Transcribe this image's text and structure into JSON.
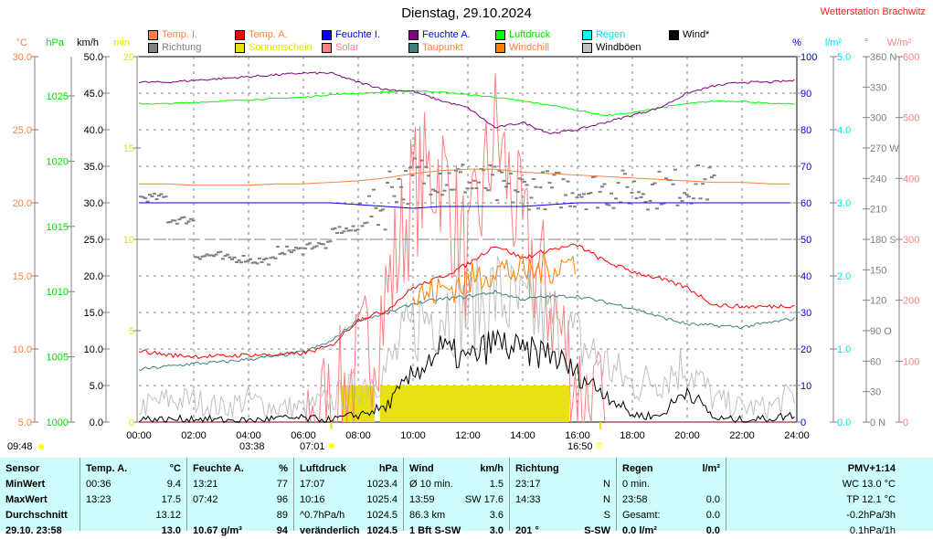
{
  "title": "Dienstag, 29.10.2024",
  "station": "Wetterstation Brachwitz",
  "legend": [
    {
      "label": "Temp. I.",
      "color": "#ff8040",
      "text": "#ff8040"
    },
    {
      "label": "Temp. A.",
      "color": "#ff0000",
      "text": "#ff8040"
    },
    {
      "label": "Feuchte I.",
      "color": "#0000ff",
      "text": "#0000ff"
    },
    {
      "label": "Feuchte A.",
      "color": "#800080",
      "text": "#0000ff"
    },
    {
      "label": "Luftdruck",
      "color": "#00ff00",
      "text": "#00e000"
    },
    {
      "label": "Regen",
      "color": "#00ffff",
      "text": "#00e0ff"
    },
    {
      "label": "Wind*",
      "color": "#000000",
      "text": "#000000"
    },
    {
      "label": "Richtung",
      "color": "#808080",
      "text": "#808080"
    },
    {
      "label": "Sonnenschein",
      "color": "#e8e010",
      "text": "#e8e010"
    },
    {
      "label": "Solar",
      "color": "#ff8080",
      "text": "#ff8080"
    },
    {
      "label": "Taupunkt",
      "color": "#408080",
      "text": "#ff8040"
    },
    {
      "label": "Windchill",
      "color": "#ff8000",
      "text": "#ff8040"
    },
    {
      "label": "Windböen",
      "color": "#c0c0c0",
      "text": "#000000"
    }
  ],
  "chart_data": {
    "type": "line",
    "title": "Dienstag, 29.10.2024",
    "x_hours": [
      0,
      1,
      2,
      3,
      4,
      5,
      6,
      7,
      8,
      9,
      10,
      11,
      12,
      13,
      14,
      15,
      16,
      17,
      18,
      19,
      20,
      21,
      22,
      23,
      24
    ],
    "x_ticks": [
      "00:00",
      "02:00",
      "04:00",
      "06:00",
      "08:00",
      "10:00",
      "12:00",
      "14:00",
      "16:00",
      "18:00",
      "20:00",
      "22:00",
      "24:00"
    ],
    "axes": {
      "temp": {
        "unit": "°C",
        "range": [
          5,
          30
        ],
        "ticks": [
          "30.0",
          "25.0",
          "20.0",
          "15.0",
          "10.0",
          "5.0"
        ],
        "color": "#ff8040"
      },
      "pressure": {
        "unit": "hPa",
        "range": [
          1000,
          1028
        ],
        "ticks": [
          "1025",
          "1020",
          "1015",
          "1010",
          "1005",
          "1000"
        ],
        "color": "#00e000"
      },
      "wind": {
        "unit": "km/h",
        "range": [
          0,
          50
        ],
        "ticks": [
          "50.0",
          "45.0",
          "40.0",
          "35.0",
          "30.0",
          "25.0",
          "20.0",
          "15.0",
          "10.0",
          "5.0",
          "0.0"
        ],
        "color": "#000000"
      },
      "sun": {
        "unit": "min",
        "range": [
          0,
          20
        ],
        "ticks": [
          "20",
          "15",
          "10",
          "5",
          "0"
        ],
        "color": "#e8e010"
      },
      "humidity": {
        "unit": "%",
        "range": [
          0,
          100
        ],
        "ticks": [
          "100",
          "90",
          "80",
          "70",
          "60",
          "50",
          "40",
          "30",
          "20",
          "10",
          "0"
        ],
        "color": "#0000ff"
      },
      "rain": {
        "unit": "l/m²",
        "range": [
          0,
          5
        ],
        "ticks": [
          "5.0",
          "4.0",
          "3.0",
          "2.0",
          "1.0",
          "0.0"
        ],
        "color": "#00e0ff"
      },
      "direction": {
        "unit": "°",
        "range": [
          0,
          360
        ],
        "ticks": [
          "360 N",
          "330",
          "300",
          "270 W",
          "240",
          "210",
          "180 S",
          "150",
          "120",
          "90  O",
          "60",
          "30",
          "0    N"
        ],
        "color": "#808080"
      },
      "solar": {
        "unit": "W/m²",
        "range": [
          0,
          600
        ],
        "ticks": [
          "600",
          "500",
          "400",
          "300",
          "200",
          "100",
          "0"
        ],
        "color": "#ff8080"
      }
    },
    "series": [
      {
        "name": "Temp. I.",
        "axis": "temp",
        "color": "#ff8040",
        "values": [
          21.3,
          21.3,
          21.2,
          21.2,
          21.2,
          21.3,
          21.3,
          21.4,
          21.5,
          21.7,
          22,
          22.2,
          22.3,
          22.3,
          22.1,
          22,
          21.9,
          21.8,
          21.7,
          21.6,
          21.5,
          21.4,
          21.4,
          21.3,
          21.3
        ]
      },
      {
        "name": "Temp. A.",
        "axis": "temp",
        "color": "#ff0000",
        "values": [
          9.9,
          9.6,
          9.5,
          9.5,
          9.6,
          9.6,
          9.7,
          10.2,
          12,
          12.6,
          14.2,
          14.9,
          15.8,
          17.1,
          16.2,
          16.8,
          17.1,
          16,
          15.3,
          14.8,
          14.2,
          13,
          12.9,
          12.9,
          13.0
        ]
      },
      {
        "name": "Taupunkt",
        "axis": "temp",
        "color": "#408080",
        "values": [
          8.6,
          8.8,
          9,
          9.1,
          9.3,
          9.5,
          9.8,
          10.5,
          12,
          12.4,
          13.1,
          13.4,
          13.6,
          13.9,
          13.4,
          13.6,
          13.6,
          13.2,
          12.8,
          12.2,
          11.7,
          11.6,
          11.5,
          11.8,
          12.1
        ]
      },
      {
        "name": "Feuchte A.",
        "axis": "humidity",
        "color": "#800080",
        "values": [
          93,
          93,
          93.5,
          94,
          94.5,
          95,
          95.5,
          95.5,
          93,
          91,
          90.5,
          88,
          86,
          80.5,
          82,
          79,
          80,
          82,
          84,
          86,
          90,
          92,
          93,
          93,
          93.5
        ]
      },
      {
        "name": "Feuchte I.",
        "axis": "humidity",
        "color": "#0000ff",
        "values": [
          60,
          60,
          60,
          60,
          60,
          60,
          60,
          60,
          59.5,
          59,
          58.5,
          59,
          59,
          59,
          59,
          59.5,
          60,
          60,
          60,
          60,
          60,
          60,
          60,
          60,
          60
        ]
      },
      {
        "name": "Luftdruck",
        "axis": "pressure",
        "color": "#00ff00",
        "values": [
          1024.4,
          1024.4,
          1024.5,
          1024.6,
          1024.7,
          1024.8,
          1024.9,
          1025.1,
          1025.2,
          1025.3,
          1025.4,
          1025.3,
          1025.1,
          1024.9,
          1024.6,
          1024.3,
          1023.9,
          1023.5,
          1023.7,
          1024.1,
          1024.4,
          1024.6,
          1024.6,
          1024.4,
          1024.4
        ]
      },
      {
        "name": "Wind*",
        "axis": "wind",
        "color": "#000000",
        "values": [
          0.5,
          0.3,
          0.5,
          0.3,
          0.2,
          0.5,
          0.5,
          0.3,
          1,
          2,
          6.5,
          10,
          8.5,
          11,
          9.5,
          9.5,
          6.5,
          4,
          1,
          0.8,
          4.5,
          0.5,
          0.3,
          0.5,
          1
        ]
      },
      {
        "name": "Windböen",
        "axis": "wind",
        "color": "#c0c0c0",
        "values": [
          2,
          3,
          3,
          2,
          3,
          2,
          2,
          3,
          5,
          7,
          13,
          16,
          15,
          17.6,
          15,
          14,
          11,
          8,
          5,
          6,
          8,
          3,
          2,
          2,
          4
        ]
      },
      {
        "name": "Windchill",
        "axis": "temp",
        "color": "#ff8000",
        "values": [
          null,
          null,
          null,
          null,
          null,
          null,
          null,
          null,
          null,
          null,
          13.5,
          14,
          14.6,
          15.5,
          15.2,
          15.6,
          16,
          null,
          null,
          null,
          null,
          null,
          null,
          null,
          null
        ]
      },
      {
        "name": "Solar",
        "axis": "solar",
        "color": "#ff8080",
        "values": [
          0,
          0,
          0,
          0,
          0,
          0,
          0,
          20,
          80,
          200,
          380,
          420,
          250,
          480,
          300,
          200,
          60,
          0,
          0,
          0,
          0,
          0,
          0,
          0,
          0
        ]
      },
      {
        "name": "Richtung",
        "axis": "direction",
        "type": "scatter",
        "color": "#808080",
        "values": [
          222,
          200,
          165,
          162,
          160,
          170,
          175,
          190,
          210,
          235,
          245,
          240,
          235,
          230,
          230,
          230,
          230,
          230,
          230,
          232,
          235,
          null,
          null,
          null,
          null
        ]
      }
    ],
    "sunshine_min": [
      {
        "from": 7.4,
        "to": 8.6,
        "value": 2
      },
      {
        "from": 8.8,
        "to": 15.7,
        "value": 2
      }
    ],
    "sun_times": {
      "sunrise_label": "07:01",
      "sunset_label": "16:50",
      "moonrise_label": "03:38",
      "moonset_label": "09:48"
    }
  },
  "table": {
    "columns": [
      {
        "head": [
          "Sensor",
          ""
        ],
        "rows": [
          [
            "MinWert",
            ""
          ],
          [
            "MaxWert",
            ""
          ],
          [
            "Durchschnitt",
            ""
          ],
          [
            "29.10. 23:58",
            ""
          ]
        ]
      },
      {
        "head": [
          "Temp. A.",
          "°C"
        ],
        "rows": [
          [
            "00:36",
            "9.4"
          ],
          [
            "13:23",
            "17.5"
          ],
          [
            "",
            "13.12"
          ],
          [
            "",
            "13.0"
          ]
        ]
      },
      {
        "head": [
          "Feuchte A.",
          "%"
        ],
        "rows": [
          [
            "13:21",
            "77"
          ],
          [
            "07:42",
            "96"
          ],
          [
            "",
            "89"
          ],
          [
            "10.67 g/m³",
            "94"
          ]
        ]
      },
      {
        "head": [
          "Luftdruck",
          "hPa"
        ],
        "rows": [
          [
            "17:07",
            "1023.4"
          ],
          [
            "10:16",
            "1025.4"
          ],
          [
            "^0.7hPa/h",
            "1024.5"
          ],
          [
            "veränderlich",
            "1024.5"
          ]
        ]
      },
      {
        "head": [
          "Wind",
          "km/h"
        ],
        "rows": [
          [
            "Ø 10 min.",
            "1.5"
          ],
          [
            "13:59",
            "SW 17.6"
          ],
          [
            "86.3 km",
            "3.6"
          ],
          [
            "1 Bft S-SW",
            "3.0"
          ]
        ]
      },
      {
        "head": [
          "Richtung",
          ""
        ],
        "rows": [
          [
            "23:17",
            "N"
          ],
          [
            "14:33",
            "N"
          ],
          [
            "",
            "S"
          ],
          [
            "201 °",
            "S-SW"
          ]
        ]
      },
      {
        "head": [
          "Regen",
          "l/m²"
        ],
        "rows": [
          [
            "0 min.",
            ""
          ],
          [
            "23:58",
            "0.0"
          ],
          [
            "Gesamt:",
            "0.0"
          ],
          [
            "0.0 l/m²",
            "0.0"
          ]
        ]
      },
      {
        "head": [
          "",
          "PMV+1:14"
        ],
        "rows": [
          [
            "",
            "WC 13.0 °C"
          ],
          [
            "",
            "TP 12.1 °C"
          ],
          [
            "",
            "-0.2hPa/3h"
          ],
          [
            "",
            "0.1hPa/1h"
          ]
        ]
      }
    ]
  }
}
